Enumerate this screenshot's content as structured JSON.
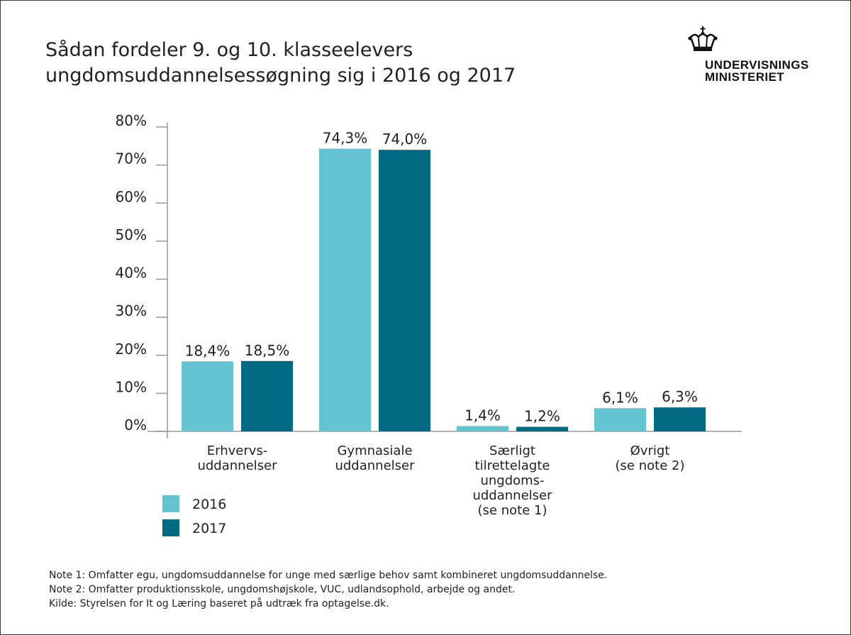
{
  "title_lines": [
    "Sådan fordeler 9. og 10. klasseelevers",
    "ungdomsuddannelsessøgning sig i 2016 og 2017"
  ],
  "logo": {
    "lines": [
      "UNDERVISNINGS",
      "MINISTERIET"
    ],
    "icon": "crown-icon"
  },
  "colors": {
    "series_2016": "#63c3d1",
    "series_2017": "#006a82",
    "axis": "#999999",
    "text": "#222222"
  },
  "chart_data": {
    "type": "bar",
    "title": "Sådan fordeler 9. og 10. klasseelevers ungdomsuddannelsessøgning sig i 2016 og 2017",
    "categories": [
      "Erhvervs- uddannelser",
      "Gymnasiale uddannelser",
      "Særligt tilrettelagte ungdoms- uddannelser (se note 1)",
      "Øvrigt (se note 2)"
    ],
    "category_lines": [
      [
        "Erhvervs-",
        "uddannelser"
      ],
      [
        "Gymnasiale",
        "uddannelser"
      ],
      [
        "Særligt",
        "tilrettelagte",
        "ungdoms-",
        "uddannelser",
        "(se note 1)"
      ],
      [
        "Øvrigt",
        "(se note 2)"
      ]
    ],
    "series": [
      {
        "name": "2016",
        "values": [
          18.4,
          74.3,
          1.4,
          6.1
        ],
        "labels": [
          "18,4%",
          "74,3%",
          "1,4%",
          "6,1%"
        ]
      },
      {
        "name": "2017",
        "values": [
          18.5,
          74.0,
          1.2,
          6.3
        ],
        "labels": [
          "18,5%",
          "74,0%",
          "1,2%",
          "6,3%"
        ]
      }
    ],
    "y_ticks": [
      {
        "value": 0,
        "label": "0%"
      },
      {
        "value": 10,
        "label": "10%"
      },
      {
        "value": 20,
        "label": "20%"
      },
      {
        "value": 30,
        "label": "30%"
      },
      {
        "value": 40,
        "label": "40%"
      },
      {
        "value": 50,
        "label": "50%"
      },
      {
        "value": 60,
        "label": "60%"
      },
      {
        "value": 70,
        "label": "70%"
      },
      {
        "value": 80,
        "label": "80%"
      }
    ],
    "ylim": [
      0,
      80
    ],
    "xlabel": "",
    "ylabel": "",
    "grid": false,
    "legend_position": "bottom-left"
  },
  "notes": [
    "Note 1: Omfatter egu, ungdomsuddannelse for unge med særlige behov samt kombineret ungdomsuddannelse.",
    "Note 2: Omfatter produktionsskole, ungdomshøjskole, VUC, udlandsophold, arbejde og andet.",
    "Kilde: Styrelsen for It og Læring baseret på udtræk fra optagelse.dk."
  ]
}
